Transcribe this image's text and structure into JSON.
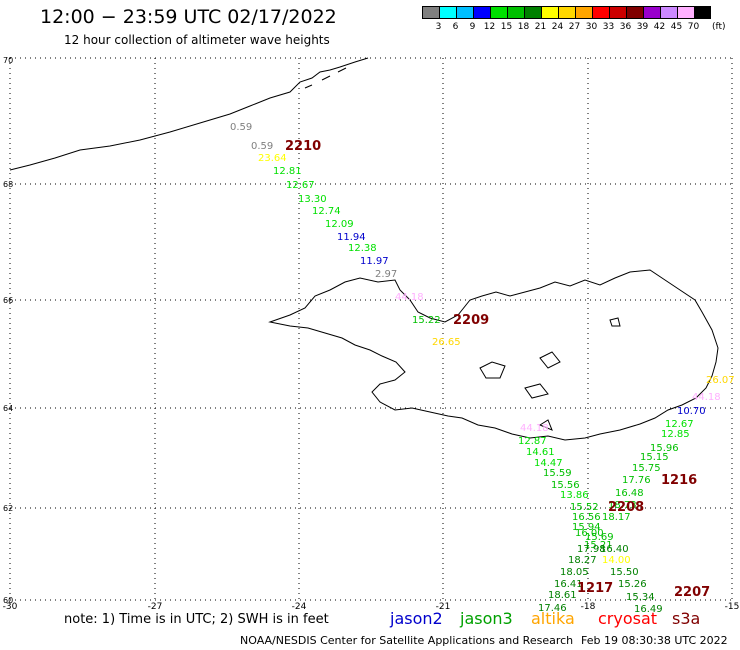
{
  "title": "12:00 − 23:59 UTC 02/17/2022",
  "subtitle": "12 hour collection of altimeter wave heights",
  "legend": {
    "colors": [
      "#808080",
      "#00ffff",
      "#00bfff",
      "#0000ff",
      "#00e000",
      "#00c000",
      "#008000",
      "#ffff00",
      "#ffd700",
      "#ffa500",
      "#ff0000",
      "#cc0000",
      "#800000",
      "#9900cc",
      "#cc88ff",
      "#ffb0ff",
      "#000000"
    ],
    "labels": [
      "3",
      "6",
      "9",
      "12",
      "15",
      "18",
      "21",
      "24",
      "27",
      "30",
      "33",
      "36",
      "39",
      "42",
      "45",
      "70"
    ],
    "unit": "(ft)"
  },
  "axes": {
    "lat_labels": [
      "70",
      "68",
      "66",
      "64",
      "62",
      "60"
    ],
    "lon_labels": [
      "-30",
      "-27",
      "-24",
      "-21",
      "-18",
      "-15"
    ]
  },
  "readings": [
    {
      "v": "0.59",
      "c": "#808080"
    },
    {
      "v": "0.59",
      "c": "#808080"
    },
    {
      "v": "23.64",
      "c": "#ffff00"
    },
    {
      "v": "12.81",
      "c": "#00e000"
    },
    {
      "v": "12.67",
      "c": "#00e000"
    },
    {
      "v": "13.30",
      "c": "#00e000"
    },
    {
      "v": "12.74",
      "c": "#00e000"
    },
    {
      "v": "12.09",
      "c": "#00e000"
    },
    {
      "v": "11.94",
      "c": "#0000cc"
    },
    {
      "v": "12.38",
      "c": "#00e000"
    },
    {
      "v": "11.97",
      "c": "#0000cc"
    },
    {
      "v": "2.97",
      "c": "#808080"
    },
    {
      "v": "44.18",
      "c": "#ffb0ff"
    },
    {
      "v": "15.22",
      "c": "#00c000"
    },
    {
      "v": "26.65",
      "c": "#ffd700"
    },
    {
      "v": "26.07",
      "c": "#ffd700"
    },
    {
      "v": "44.18",
      "c": "#ffb0ff"
    },
    {
      "v": "10.70",
      "c": "#0000cc"
    },
    {
      "v": "12.67",
      "c": "#00e000"
    },
    {
      "v": "44.18",
      "c": "#ffb0ff"
    },
    {
      "v": "12.85",
      "c": "#00e000"
    },
    {
      "v": "12.87",
      "c": "#00e000"
    },
    {
      "v": "15.96",
      "c": "#00c000"
    },
    {
      "v": "14.61",
      "c": "#00e000"
    },
    {
      "v": "15.15",
      "c": "#00c000"
    },
    {
      "v": "14.47",
      "c": "#00e000"
    },
    {
      "v": "15.75",
      "c": "#00c000"
    },
    {
      "v": "15.59",
      "c": "#00c000"
    },
    {
      "v": "17.76",
      "c": "#00c000"
    },
    {
      "v": "15.56",
      "c": "#00c000"
    },
    {
      "v": "16.48",
      "c": "#00c000"
    },
    {
      "v": "13.86",
      "c": "#00e000"
    },
    {
      "v": "18.73",
      "c": "#00c000"
    },
    {
      "v": "15.52",
      "c": "#00c000"
    },
    {
      "v": "18.17",
      "c": "#00c000"
    },
    {
      "v": "16.56",
      "c": "#00c000"
    },
    {
      "v": "15.94",
      "c": "#00c000"
    },
    {
      "v": "16.00",
      "c": "#00c000"
    },
    {
      "v": "15.69",
      "c": "#00c000"
    },
    {
      "v": "15.21",
      "c": "#00c000"
    },
    {
      "v": "17.98",
      "c": "#008000"
    },
    {
      "v": "16.40",
      "c": "#008000"
    },
    {
      "v": "18.27",
      "c": "#008000"
    },
    {
      "v": "14.00",
      "c": "#ffff00"
    },
    {
      "v": "18.05",
      "c": "#008000"
    },
    {
      "v": "15.50",
      "c": "#008000"
    },
    {
      "v": "16.41",
      "c": "#008000"
    },
    {
      "v": "15.26",
      "c": "#008000"
    },
    {
      "v": "18.61",
      "c": "#008000"
    },
    {
      "v": "15.34",
      "c": "#008000"
    },
    {
      "v": "17.46",
      "c": "#008000"
    },
    {
      "v": "16.49",
      "c": "#008000"
    }
  ],
  "pass_labels": [
    "2210",
    "2209",
    "1216",
    "2208",
    "1217",
    "2207"
  ],
  "note": "note:  1) Time is in UTC;  2) SWH is in feet",
  "satellites": [
    {
      "name": "jason2",
      "color": "#0000cc"
    },
    {
      "name": "jason3",
      "color": "#00a000"
    },
    {
      "name": "altika",
      "color": "#ffa500"
    },
    {
      "name": "cryosat",
      "color": "#ff0000"
    },
    {
      "name": "s3a",
      "color": "#800000"
    }
  ],
  "footer": "NOAA/NESDIS Center for Satellite Applications and Research",
  "footer_time": "Feb 19 08:30:38 UTC 2022"
}
